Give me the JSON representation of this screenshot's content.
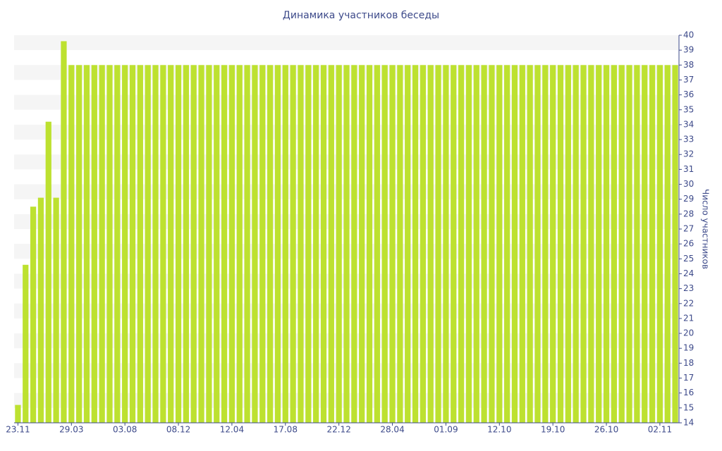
{
  "chart_data": {
    "type": "bar",
    "title": "Динамика участников беседы",
    "y_axis_label": "Число участников",
    "categories": [
      "23.11",
      null,
      null,
      null,
      null,
      null,
      null,
      "29.03",
      null,
      null,
      null,
      null,
      null,
      null,
      "03.08",
      null,
      null,
      null,
      null,
      null,
      null,
      "08.12",
      null,
      null,
      null,
      null,
      null,
      null,
      "12.04",
      null,
      null,
      null,
      null,
      null,
      null,
      "17.08",
      null,
      null,
      null,
      null,
      null,
      null,
      "22.12",
      null,
      null,
      null,
      null,
      null,
      null,
      "28.04",
      null,
      null,
      null,
      null,
      null,
      null,
      "01.09",
      null,
      null,
      null,
      null,
      null,
      null,
      "12.10",
      null,
      null,
      null,
      null,
      null,
      null,
      "19.10",
      null,
      null,
      null,
      null,
      null,
      null,
      "26.10",
      null,
      null,
      null,
      null,
      null,
      null,
      "02.11",
      null,
      null
    ],
    "values": [
      15.2,
      24.6,
      28.5,
      29.1,
      34.2,
      29.1,
      39.6,
      38,
      38,
      38,
      38,
      38,
      38,
      38,
      38,
      38,
      38,
      38,
      38,
      38,
      38,
      38,
      38,
      38,
      38,
      38,
      38,
      38,
      38,
      38,
      38,
      38,
      38,
      38,
      38,
      38,
      38,
      38,
      38,
      38,
      38,
      38,
      38,
      38,
      38,
      38,
      38,
      38,
      38,
      38,
      38,
      38,
      38,
      38,
      38,
      38,
      38,
      38,
      38,
      38,
      38,
      38,
      38,
      38,
      38,
      38,
      38,
      38,
      38,
      38,
      38,
      38,
      38,
      38,
      38,
      38,
      38,
      38,
      38,
      38,
      38,
      38,
      38,
      38,
      38,
      38,
      38
    ],
    "color": "#bde130",
    "ylim": [
      14,
      40
    ],
    "yticks": [
      14,
      15,
      16,
      17,
      18,
      19,
      20,
      21,
      22,
      23,
      24,
      25,
      26,
      27,
      28,
      29,
      30,
      31,
      32,
      33,
      34,
      35,
      36,
      37,
      38,
      39,
      40
    ],
    "y_axis_side": "right",
    "grid": "bands"
  }
}
